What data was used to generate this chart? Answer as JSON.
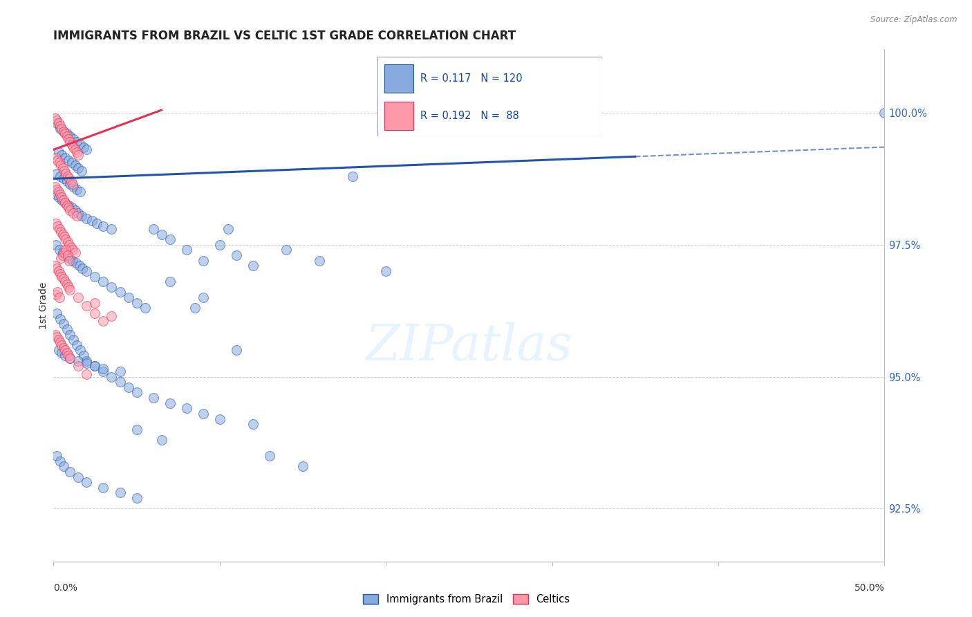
{
  "title": "IMMIGRANTS FROM BRAZIL VS CELTIC 1ST GRADE CORRELATION CHART",
  "source": "Source: ZipAtlas.com",
  "ylabel": "1st Grade",
  "y_ticks": [
    92.5,
    95.0,
    97.5,
    100.0
  ],
  "y_tick_labels": [
    "92.5%",
    "95.0%",
    "97.5%",
    "100.0%"
  ],
  "x_min": 0.0,
  "x_max": 50.0,
  "y_min": 91.5,
  "y_max": 101.2,
  "blue_color": "#88AADD",
  "pink_color": "#FF99AA",
  "blue_line_color": "#2255AA",
  "pink_line_color": "#DD3355",
  "blue_trend_x": [
    0.0,
    50.0
  ],
  "blue_trend_y": [
    98.75,
    99.35
  ],
  "blue_solid_end": 35.0,
  "pink_trend_x": [
    0.0,
    6.5
  ],
  "pink_trend_y": [
    99.3,
    100.05
  ],
  "scatter_blue": [
    [
      0.2,
      99.8
    ],
    [
      0.4,
      99.7
    ],
    [
      0.6,
      99.65
    ],
    [
      0.8,
      99.6
    ],
    [
      1.0,
      99.55
    ],
    [
      1.2,
      99.5
    ],
    [
      1.4,
      99.45
    ],
    [
      1.6,
      99.4
    ],
    [
      1.8,
      99.35
    ],
    [
      2.0,
      99.3
    ],
    [
      0.3,
      99.25
    ],
    [
      0.5,
      99.2
    ],
    [
      0.7,
      99.15
    ],
    [
      0.9,
      99.1
    ],
    [
      1.1,
      99.05
    ],
    [
      1.3,
      99.0
    ],
    [
      1.5,
      98.95
    ],
    [
      1.7,
      98.9
    ],
    [
      0.2,
      98.85
    ],
    [
      0.4,
      98.8
    ],
    [
      0.6,
      98.75
    ],
    [
      0.8,
      98.7
    ],
    [
      1.0,
      98.65
    ],
    [
      1.2,
      98.6
    ],
    [
      1.4,
      98.55
    ],
    [
      1.6,
      98.5
    ],
    [
      0.1,
      98.45
    ],
    [
      0.3,
      98.4
    ],
    [
      0.5,
      98.35
    ],
    [
      0.7,
      98.3
    ],
    [
      0.9,
      98.25
    ],
    [
      1.1,
      98.2
    ],
    [
      1.3,
      98.15
    ],
    [
      1.5,
      98.1
    ],
    [
      1.7,
      98.05
    ],
    [
      2.0,
      98.0
    ],
    [
      2.3,
      97.95
    ],
    [
      2.6,
      97.9
    ],
    [
      3.0,
      97.85
    ],
    [
      3.5,
      97.8
    ],
    [
      0.15,
      97.5
    ],
    [
      0.35,
      97.4
    ],
    [
      0.55,
      97.35
    ],
    [
      0.75,
      97.3
    ],
    [
      0.95,
      97.25
    ],
    [
      1.15,
      97.2
    ],
    [
      1.35,
      97.15
    ],
    [
      1.55,
      97.1
    ],
    [
      1.75,
      97.05
    ],
    [
      2.0,
      97.0
    ],
    [
      2.5,
      96.9
    ],
    [
      3.0,
      96.8
    ],
    [
      3.5,
      96.7
    ],
    [
      4.0,
      96.6
    ],
    [
      4.5,
      96.5
    ],
    [
      5.0,
      96.4
    ],
    [
      5.5,
      96.3
    ],
    [
      6.0,
      97.8
    ],
    [
      6.5,
      97.7
    ],
    [
      7.0,
      97.6
    ],
    [
      8.0,
      97.4
    ],
    [
      9.0,
      97.2
    ],
    [
      10.0,
      97.5
    ],
    [
      11.0,
      97.3
    ],
    [
      12.0,
      97.1
    ],
    [
      14.0,
      97.4
    ],
    [
      16.0,
      97.2
    ],
    [
      18.0,
      98.8
    ],
    [
      20.0,
      97.0
    ],
    [
      0.2,
      96.2
    ],
    [
      0.4,
      96.1
    ],
    [
      0.6,
      96.0
    ],
    [
      0.8,
      95.9
    ],
    [
      1.0,
      95.8
    ],
    [
      1.2,
      95.7
    ],
    [
      1.4,
      95.6
    ],
    [
      1.6,
      95.5
    ],
    [
      1.8,
      95.4
    ],
    [
      2.0,
      95.3
    ],
    [
      2.5,
      95.2
    ],
    [
      3.0,
      95.1
    ],
    [
      3.5,
      95.0
    ],
    [
      4.0,
      94.9
    ],
    [
      4.5,
      94.8
    ],
    [
      5.0,
      94.7
    ],
    [
      6.0,
      94.6
    ],
    [
      7.0,
      94.5
    ],
    [
      8.0,
      94.4
    ],
    [
      9.0,
      94.3
    ],
    [
      10.0,
      94.2
    ],
    [
      12.0,
      94.1
    ],
    [
      0.3,
      95.5
    ],
    [
      0.5,
      95.45
    ],
    [
      0.7,
      95.4
    ],
    [
      1.0,
      95.35
    ],
    [
      1.5,
      95.3
    ],
    [
      2.0,
      95.25
    ],
    [
      2.5,
      95.2
    ],
    [
      3.0,
      95.15
    ],
    [
      4.0,
      95.1
    ],
    [
      5.0,
      94.0
    ],
    [
      7.0,
      96.8
    ],
    [
      9.0,
      96.5
    ],
    [
      11.0,
      95.5
    ],
    [
      13.0,
      93.5
    ],
    [
      15.0,
      93.3
    ],
    [
      0.2,
      93.5
    ],
    [
      0.4,
      93.4
    ],
    [
      0.6,
      93.3
    ],
    [
      1.0,
      93.2
    ],
    [
      1.5,
      93.1
    ],
    [
      2.0,
      93.0
    ],
    [
      3.0,
      92.9
    ],
    [
      4.0,
      92.8
    ],
    [
      5.0,
      92.7
    ],
    [
      6.5,
      93.8
    ],
    [
      8.5,
      96.3
    ],
    [
      10.5,
      97.8
    ],
    [
      50.0,
      100.0
    ]
  ],
  "scatter_pink": [
    [
      0.1,
      99.9
    ],
    [
      0.2,
      99.85
    ],
    [
      0.3,
      99.8
    ],
    [
      0.4,
      99.75
    ],
    [
      0.5,
      99.7
    ],
    [
      0.6,
      99.65
    ],
    [
      0.7,
      99.6
    ],
    [
      0.8,
      99.55
    ],
    [
      0.9,
      99.5
    ],
    [
      1.0,
      99.45
    ],
    [
      1.1,
      99.4
    ],
    [
      1.2,
      99.35
    ],
    [
      1.3,
      99.3
    ],
    [
      1.4,
      99.25
    ],
    [
      1.5,
      99.2
    ],
    [
      0.15,
      99.15
    ],
    [
      0.25,
      99.1
    ],
    [
      0.35,
      99.05
    ],
    [
      0.45,
      99.0
    ],
    [
      0.55,
      98.95
    ],
    [
      0.65,
      98.9
    ],
    [
      0.75,
      98.85
    ],
    [
      0.85,
      98.8
    ],
    [
      0.95,
      98.75
    ],
    [
      1.05,
      98.7
    ],
    [
      1.15,
      98.65
    ],
    [
      0.1,
      98.6
    ],
    [
      0.2,
      98.55
    ],
    [
      0.3,
      98.5
    ],
    [
      0.4,
      98.45
    ],
    [
      0.5,
      98.4
    ],
    [
      0.6,
      98.35
    ],
    [
      0.7,
      98.3
    ],
    [
      0.8,
      98.25
    ],
    [
      0.9,
      98.2
    ],
    [
      1.0,
      98.15
    ],
    [
      1.2,
      98.1
    ],
    [
      1.4,
      98.05
    ],
    [
      0.15,
      97.9
    ],
    [
      0.25,
      97.85
    ],
    [
      0.35,
      97.8
    ],
    [
      0.45,
      97.75
    ],
    [
      0.55,
      97.7
    ],
    [
      0.65,
      97.65
    ],
    [
      0.75,
      97.6
    ],
    [
      0.85,
      97.55
    ],
    [
      0.95,
      97.5
    ],
    [
      1.05,
      97.45
    ],
    [
      1.15,
      97.4
    ],
    [
      1.3,
      97.35
    ],
    [
      0.1,
      97.1
    ],
    [
      0.2,
      97.05
    ],
    [
      0.3,
      97.0
    ],
    [
      0.4,
      96.95
    ],
    [
      0.5,
      96.9
    ],
    [
      0.6,
      96.85
    ],
    [
      0.7,
      96.8
    ],
    [
      0.8,
      96.75
    ],
    [
      0.9,
      96.7
    ],
    [
      1.0,
      96.65
    ],
    [
      1.5,
      96.5
    ],
    [
      2.0,
      96.35
    ],
    [
      2.5,
      96.2
    ],
    [
      3.0,
      96.05
    ],
    [
      0.1,
      95.8
    ],
    [
      0.2,
      95.75
    ],
    [
      0.3,
      95.7
    ],
    [
      0.4,
      95.65
    ],
    [
      0.5,
      95.6
    ],
    [
      0.6,
      95.55
    ],
    [
      0.7,
      95.5
    ],
    [
      0.8,
      95.45
    ],
    [
      0.9,
      95.4
    ],
    [
      1.0,
      95.35
    ],
    [
      1.5,
      95.2
    ],
    [
      2.0,
      95.05
    ],
    [
      2.5,
      96.4
    ],
    [
      3.5,
      96.15
    ],
    [
      0.15,
      96.55
    ],
    [
      0.25,
      96.6
    ],
    [
      0.35,
      96.5
    ],
    [
      0.45,
      97.25
    ],
    [
      0.55,
      97.3
    ],
    [
      0.65,
      97.35
    ],
    [
      0.75,
      97.4
    ],
    [
      0.85,
      97.3
    ],
    [
      0.95,
      97.2
    ]
  ]
}
